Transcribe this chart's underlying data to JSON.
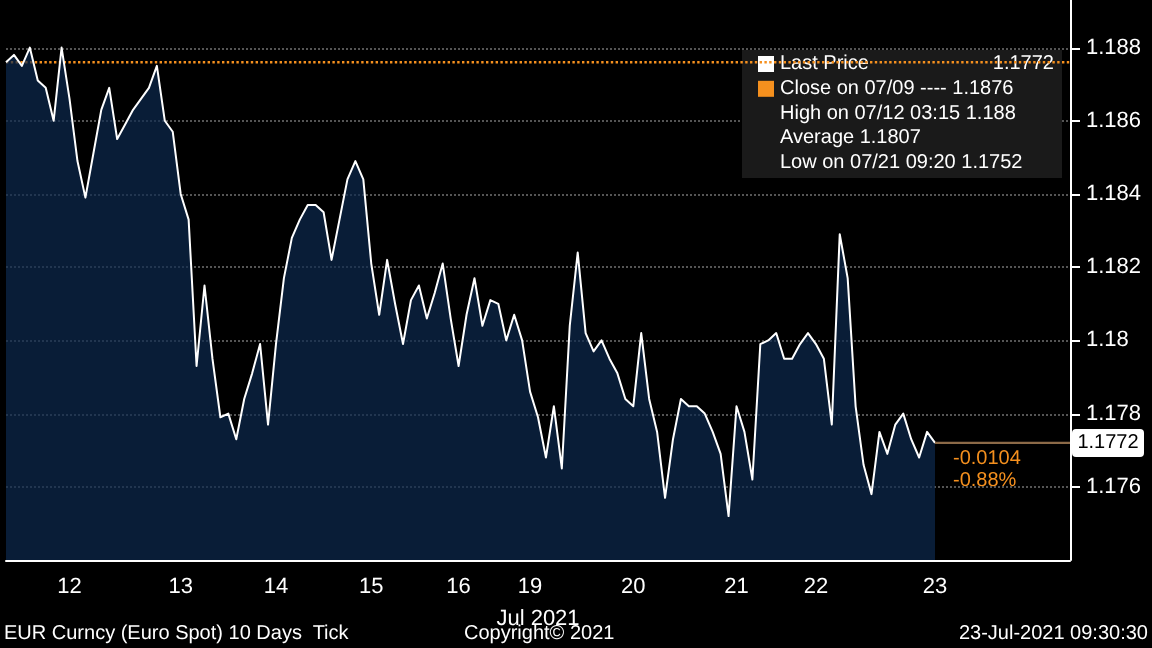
{
  "chart_data": {
    "type": "area",
    "categories": [
      null,
      null,
      null,
      null,
      null,
      null,
      null,
      null,
      "12",
      null,
      null,
      null,
      null,
      null,
      null,
      null,
      null,
      null,
      null,
      null,
      null,
      null,
      "13",
      null,
      null,
      null,
      null,
      null,
      null,
      null,
      null,
      null,
      null,
      null,
      "14",
      null,
      null,
      null,
      null,
      null,
      null,
      null,
      null,
      null,
      null,
      null,
      "15",
      null,
      null,
      null,
      null,
      null,
      null,
      null,
      null,
      null,
      null,
      "16",
      null,
      null,
      null,
      null,
      null,
      null,
      null,
      null,
      "19",
      null,
      null,
      null,
      null,
      null,
      null,
      null,
      null,
      null,
      null,
      null,
      null,
      "20",
      null,
      null,
      null,
      null,
      null,
      null,
      null,
      null,
      null,
      null,
      null,
      null,
      "21",
      null,
      null,
      null,
      null,
      null,
      null,
      null,
      null,
      null,
      "22",
      null,
      null,
      null,
      null,
      null,
      null,
      null,
      null,
      null,
      null,
      null,
      null,
      null,
      null,
      "23",
      null,
      null,
      null,
      null,
      null,
      null,
      null,
      null,
      null,
      null,
      null,
      null,
      null,
      null,
      null,
      null,
      null
    ],
    "series": [
      {
        "name": "Last Price",
        "color": "#ffffff",
        "values": [
          1.1876,
          1.1878,
          1.1875,
          1.188,
          1.1871,
          1.1869,
          1.186,
          1.188,
          1.1866,
          1.1849,
          1.1839,
          1.1851,
          1.1863,
          1.1869,
          1.1855,
          1.1859,
          1.1863,
          1.1866,
          1.1869,
          1.1875,
          1.186,
          1.1857,
          1.184,
          1.1833,
          1.1793,
          1.1815,
          1.1795,
          1.1779,
          1.178,
          1.1773,
          1.1784,
          1.1791,
          1.1799,
          1.1777,
          1.1799,
          1.1817,
          1.1828,
          1.1833,
          1.1837,
          1.1837,
          1.1835,
          1.1822,
          1.1833,
          1.1844,
          1.1849,
          1.1844,
          1.1821,
          1.1807,
          1.1822,
          1.181,
          1.1799,
          1.1811,
          1.1815,
          1.1806,
          1.1813,
          1.1821,
          1.1806,
          1.1793,
          1.1807,
          1.1817,
          1.1804,
          1.1811,
          1.181,
          1.18,
          1.1807,
          1.18,
          1.1786,
          1.1779,
          1.1768,
          1.1782,
          1.1765,
          1.1804,
          1.1824,
          1.1802,
          1.1797,
          1.18,
          1.1795,
          1.1791,
          1.1784,
          1.1782,
          1.1802,
          1.1784,
          1.1775,
          1.1757,
          1.1773,
          1.1784,
          1.1782,
          1.1782,
          1.178,
          1.1775,
          1.1769,
          1.1752,
          1.1782,
          1.1775,
          1.1762,
          1.1799,
          1.18,
          1.1802,
          1.1795,
          1.1795,
          1.1799,
          1.1802,
          1.1799,
          1.1795,
          1.1777,
          1.1829,
          1.1817,
          1.1782,
          1.1766,
          1.1758,
          1.1775,
          1.1769,
          1.1777,
          1.178,
          1.1773,
          1.1768,
          1.1775,
          1.1772,
          null,
          null,
          null,
          null,
          null,
          null,
          null,
          null,
          null,
          null,
          null,
          null,
          null,
          null,
          null,
          null,
          null
        ]
      }
    ],
    "xlabel": "Jul 2021",
    "ylim": [
      1.174,
      1.1893
    ],
    "yticks": [
      1.176,
      1.178,
      1.18,
      1.182,
      1.184,
      1.186,
      1.188
    ],
    "grid": "y",
    "legend": "top right",
    "ref_lines": [
      {
        "axis": "y",
        "value": 1.1876,
        "label": "Close on 07/09 ---- 1.1876",
        "color": "#f5901e",
        "line_style": "dotted"
      },
      {
        "axis": "y",
        "value": 1.1772,
        "label": "1.1772",
        "color": "#8c6a48",
        "line_style": "solid"
      }
    ],
    "annotations": [
      "1.1772",
      "High on 07/12 03:15 1.188",
      "Average 1.1807",
      "Low on 07/21 09:20 1.1752",
      "-0.0104",
      "-0.88%",
      "EUR Curncy (Euro Spot) 10 Days  Tick",
      "Copyright© 2021",
      "23-Jul-2021 09:30:30"
    ]
  }
}
